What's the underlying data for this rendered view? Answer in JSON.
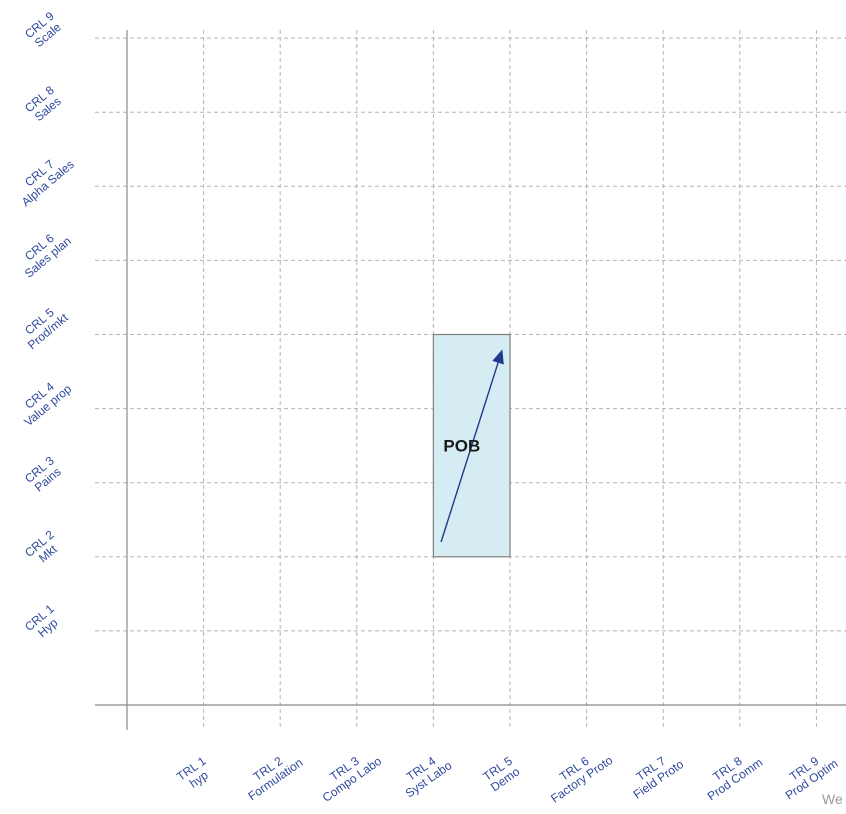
{
  "x_levels": [
    {
      "line1": "TRL 1",
      "line2": "hyp"
    },
    {
      "line1": "TRL 2",
      "line2": "Formulation"
    },
    {
      "line1": "TRL 3",
      "line2": "Compo Labo"
    },
    {
      "line1": "TRL 4",
      "line2": "Syst Labo"
    },
    {
      "line1": "TRL 5",
      "line2": "Demo"
    },
    {
      "line1": "TRL 6",
      "line2": "Factory Proto"
    },
    {
      "line1": "TRL 7",
      "line2": "Field Proto"
    },
    {
      "line1": "TRL 8",
      "line2": "Prod Comm"
    },
    {
      "line1": "TRL 9",
      "line2": "Prod Optim"
    }
  ],
  "y_levels": [
    {
      "line1": "CRL 1",
      "line2": "Hyp"
    },
    {
      "line1": "CRL 2",
      "line2": "Mkt"
    },
    {
      "line1": "CRL 3",
      "line2": "Pains"
    },
    {
      "line1": "CRL 4",
      "line2": "Value prop"
    },
    {
      "line1": "CRL 5",
      "line2": "Prod/mkt"
    },
    {
      "line1": "CRL 6",
      "line2": "Sales plan"
    },
    {
      "line1": "CRL 7",
      "line2": "Alpha Sales"
    },
    {
      "line1": "CRL 8",
      "line2": "Sales"
    },
    {
      "line1": "CRL 9",
      "line2": "Scale"
    }
  ],
  "region": {
    "label": "POB",
    "trl_from": 4,
    "trl_to": 5,
    "crl_from": 2,
    "crl_to": 5,
    "arrow_from": {
      "trl": 4.1,
      "crl": 2.2
    },
    "arrow_to": {
      "trl": 4.9,
      "crl": 4.8
    }
  },
  "watermark": "We",
  "colors": {
    "label": "#2f4a9e",
    "grid": "#b5b5b5",
    "axis": "#8a8a8a",
    "region_fill": "#d6ecf3",
    "region_stroke": "#7f7f7f",
    "arrow": "#1f3a8a"
  }
}
